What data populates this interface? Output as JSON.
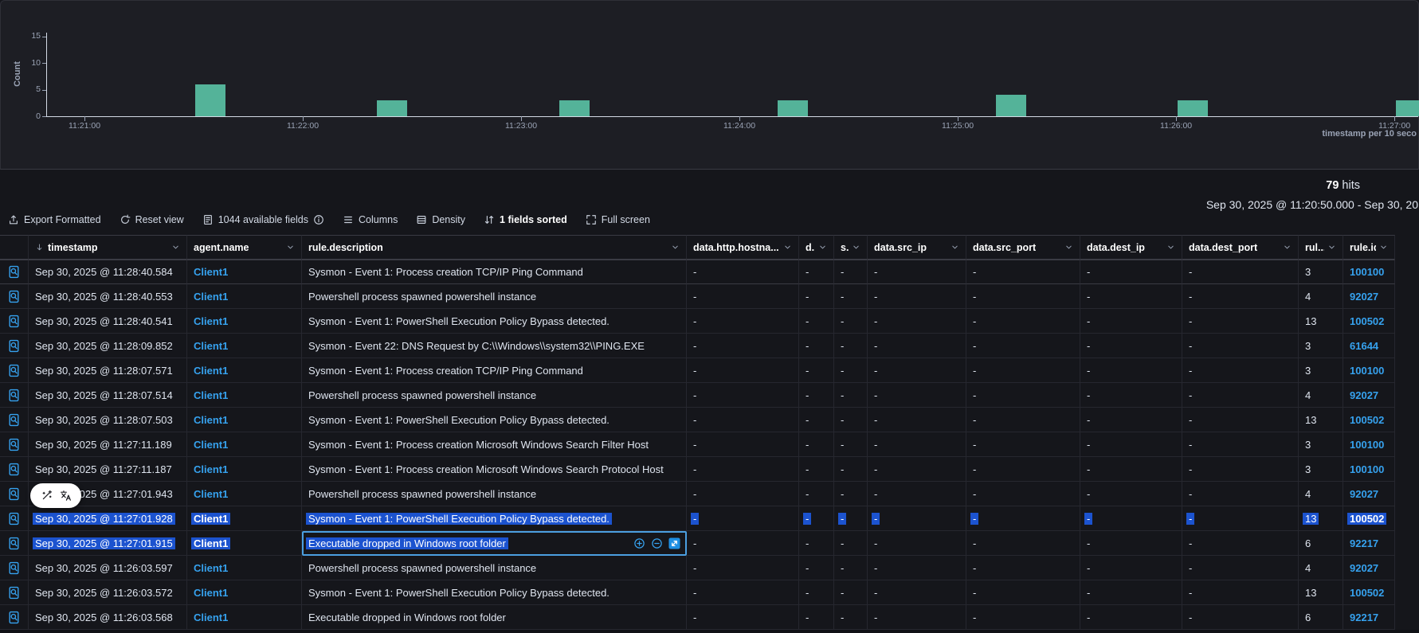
{
  "chart_data": {
    "type": "bar",
    "title": "",
    "ylabel": "Count",
    "xlabel": "timestamp per 10 seco",
    "x_ticks": [
      "11:21:00",
      "11:22:00",
      "11:23:00",
      "11:24:00",
      "11:25:00",
      "11:26:00",
      "11:27:00"
    ],
    "y_ticks": [
      0,
      5,
      10,
      15
    ],
    "ylim": [
      0,
      16
    ],
    "legend": "off",
    "grid": "off",
    "bar_color": "#54b399",
    "buckets": [
      {
        "time": "11:21:30",
        "count": 6
      },
      {
        "time": "11:22:20",
        "count": 3
      },
      {
        "time": "11:23:10",
        "count": 3
      },
      {
        "time": "11:24:10",
        "count": 3
      },
      {
        "time": "11:25:10",
        "count": 4
      },
      {
        "time": "11:26:00",
        "count": 3
      },
      {
        "time": "11:27:00",
        "count": 3
      }
    ]
  },
  "summary": {
    "hits_value": "79",
    "hits_label": "hits",
    "time_range": "Sep 30, 2025 @ 11:20:50.000 - Sep 30, 20"
  },
  "toolbar": {
    "items": [
      {
        "icon": "export-icon",
        "label": "Export Formatted"
      },
      {
        "icon": "refresh-icon",
        "label": "Reset view"
      },
      {
        "icon": "fields-icon",
        "label": "1044 available fields",
        "suffix_icon": "info-icon"
      },
      {
        "icon": "columns-icon",
        "label": "Columns"
      },
      {
        "icon": "density-icon",
        "label": "Density"
      },
      {
        "icon": "sort-icon",
        "label": "1 fields sorted",
        "emphasis": true
      },
      {
        "icon": "fullscreen-icon",
        "label": "Full screen"
      }
    ]
  },
  "selection_popup": {
    "icons": [
      "magic-wand-icon",
      "translate-icon"
    ]
  },
  "colors": {
    "accent_blue": "#36a2ef",
    "selection_blue": "#1c53cf",
    "bar_teal": "#54b399"
  },
  "table": {
    "placeholder": "-",
    "cell_actions": [
      "filter-in-icon",
      "filter-out-icon",
      "expand-cell-icon"
    ],
    "columns": [
      {
        "id": "expand",
        "label": ""
      },
      {
        "id": "timestamp",
        "label": "timestamp",
        "sorted": "desc"
      },
      {
        "id": "agent.name",
        "label": "agent.name"
      },
      {
        "id": "rule.description",
        "label": "rule.description"
      },
      {
        "id": "data.http.hostname",
        "label": "data.http.hostna..."
      },
      {
        "id": "d",
        "label": "d..."
      },
      {
        "id": "s",
        "label": "s..."
      },
      {
        "id": "data.src_ip",
        "label": "data.src_ip"
      },
      {
        "id": "data.src_port",
        "label": "data.src_port"
      },
      {
        "id": "data.dest_ip",
        "label": "data.dest_ip"
      },
      {
        "id": "data.dest_port",
        "label": "data.dest_port"
      },
      {
        "id": "rule.level",
        "label": "rul..."
      },
      {
        "id": "rule.id",
        "label": "rule.id"
      }
    ],
    "rows": [
      {
        "timestamp": "Sep 30, 2025 @ 11:28:40.584",
        "agent": "Client1",
        "description": "Sysmon - Event 1: Process creation TCP/IP Ping Command",
        "level": "3",
        "id": "100100",
        "highlight": "none"
      },
      {
        "timestamp": "Sep 30, 2025 @ 11:28:40.553",
        "agent": "Client1",
        "description": "Powershell process spawned powershell instance",
        "level": "4",
        "id": "92027",
        "highlight": "none"
      },
      {
        "timestamp": "Sep 30, 2025 @ 11:28:40.541",
        "agent": "Client1",
        "description": "Sysmon - Event 1: PowerShell Execution Policy Bypass detected.",
        "level": "13",
        "id": "100502",
        "highlight": "none"
      },
      {
        "timestamp": "Sep 30, 2025 @ 11:28:09.852",
        "agent": "Client1",
        "description": "Sysmon - Event 22: DNS Request by C:\\\\Windows\\\\system32\\\\PING.EXE",
        "level": "3",
        "id": "61644",
        "highlight": "none"
      },
      {
        "timestamp": "Sep 30, 2025 @ 11:28:07.571",
        "agent": "Client1",
        "description": "Sysmon - Event 1: Process creation TCP/IP Ping Command",
        "level": "3",
        "id": "100100",
        "highlight": "none"
      },
      {
        "timestamp": "Sep 30, 2025 @ 11:28:07.514",
        "agent": "Client1",
        "description": "Powershell process spawned powershell instance",
        "level": "4",
        "id": "92027",
        "highlight": "none"
      },
      {
        "timestamp": "Sep 30, 2025 @ 11:28:07.503",
        "agent": "Client1",
        "description": "Sysmon - Event 1: PowerShell Execution Policy Bypass detected.",
        "level": "13",
        "id": "100502",
        "highlight": "none"
      },
      {
        "timestamp": "Sep 30, 2025 @ 11:27:11.189",
        "agent": "Client1",
        "description": "Sysmon - Event 1: Process creation Microsoft Windows Search Filter Host",
        "level": "3",
        "id": "100100",
        "highlight": "none"
      },
      {
        "timestamp": "Sep 30, 2025 @ 11:27:11.187",
        "agent": "Client1",
        "description": "Sysmon - Event 1: Process creation Microsoft Windows Search Protocol Host",
        "level": "3",
        "id": "100100",
        "highlight": "none"
      },
      {
        "timestamp": "Sep 30, 2025 @ 11:27:01.943",
        "agent": "Client1",
        "description": "Powershell process spawned powershell instance",
        "level": "4",
        "id": "92027",
        "highlight": "none",
        "popup": true
      },
      {
        "timestamp": "Sep 30, 2025 @ 11:27:01.928",
        "agent": "Client1",
        "description": "Sysmon - Event 1: PowerShell Execution Policy Bypass detected.",
        "level": "13",
        "id": "100502",
        "highlight": "full"
      },
      {
        "timestamp": "Sep 30, 2025 @ 11:27:01.915",
        "agent": "Client1",
        "description": "Executable dropped in Windows root folder",
        "level": "6",
        "id": "92217",
        "highlight": "lead3",
        "focus_cell": "rule.description"
      },
      {
        "timestamp": "Sep 30, 2025 @ 11:26:03.597",
        "agent": "Client1",
        "description": "Powershell process spawned powershell instance",
        "level": "4",
        "id": "92027",
        "highlight": "none"
      },
      {
        "timestamp": "Sep 30, 2025 @ 11:26:03.572",
        "agent": "Client1",
        "description": "Sysmon - Event 1: PowerShell Execution Policy Bypass detected.",
        "level": "13",
        "id": "100502",
        "highlight": "none"
      },
      {
        "timestamp": "Sep 30, 2025 @ 11:26:03.568",
        "agent": "Client1",
        "description": "Executable dropped in Windows root folder",
        "level": "6",
        "id": "92217",
        "highlight": "none"
      }
    ]
  }
}
